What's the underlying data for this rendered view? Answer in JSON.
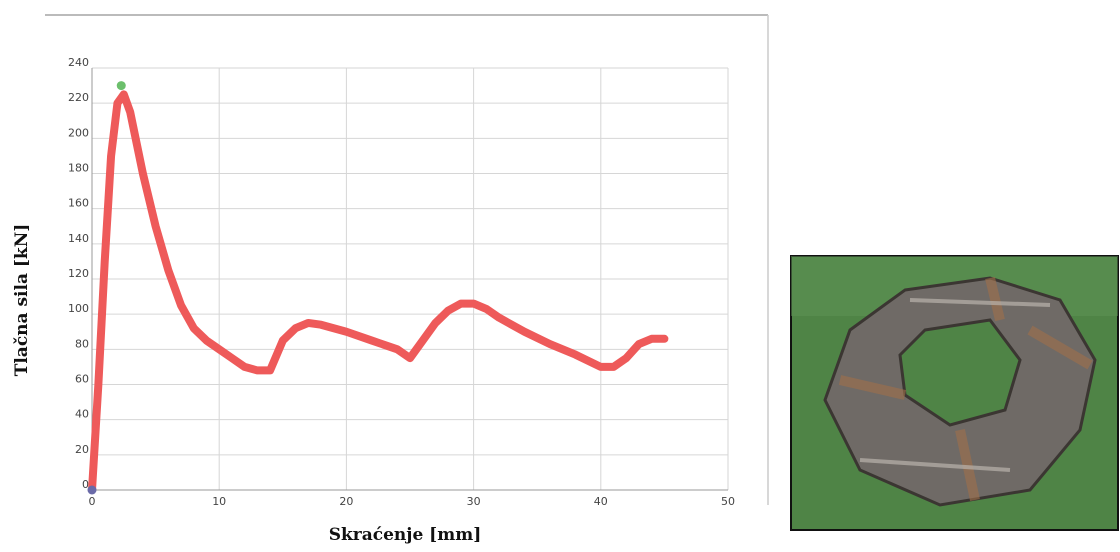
{
  "chart_data": {
    "type": "line",
    "x_label": "Skraćenje [mm]",
    "y_label": "Tlačna sila [kN]",
    "x": [
      0,
      0.5,
      1,
      1.5,
      2,
      2.5,
      3,
      4,
      5,
      6,
      7,
      8,
      9,
      10,
      11,
      12,
      13,
      14,
      15,
      16,
      17,
      18,
      20,
      22,
      24,
      25,
      26,
      27,
      28,
      29,
      30,
      31,
      32,
      34,
      36,
      38,
      40,
      41,
      42,
      43,
      44,
      45
    ],
    "series": [
      {
        "color": "#ee5a5a",
        "values": [
          0,
          60,
          130,
          190,
          220,
          225,
          215,
          180,
          150,
          125,
          105,
          92,
          85,
          80,
          75,
          70,
          68,
          68,
          85,
          92,
          95,
          94,
          90,
          85,
          80,
          75,
          85,
          95,
          102,
          106,
          106,
          103,
          98,
          90,
          83,
          77,
          70,
          70,
          75,
          83,
          86,
          86
        ]
      }
    ],
    "markers": [
      {
        "x": 0,
        "y": 0,
        "color": "#6a6aa8"
      },
      {
        "x": 2.3,
        "y": 230,
        "color": "#6cbf6c"
      }
    ],
    "xlim": [
      0,
      50
    ],
    "xticks": [
      0,
      10,
      20,
      30,
      40,
      50
    ],
    "ylim": [
      0,
      240
    ],
    "yticks": [
      0,
      20,
      40,
      60,
      80,
      100,
      120,
      140,
      160,
      180,
      200,
      220,
      240
    ],
    "grid": true
  }
}
